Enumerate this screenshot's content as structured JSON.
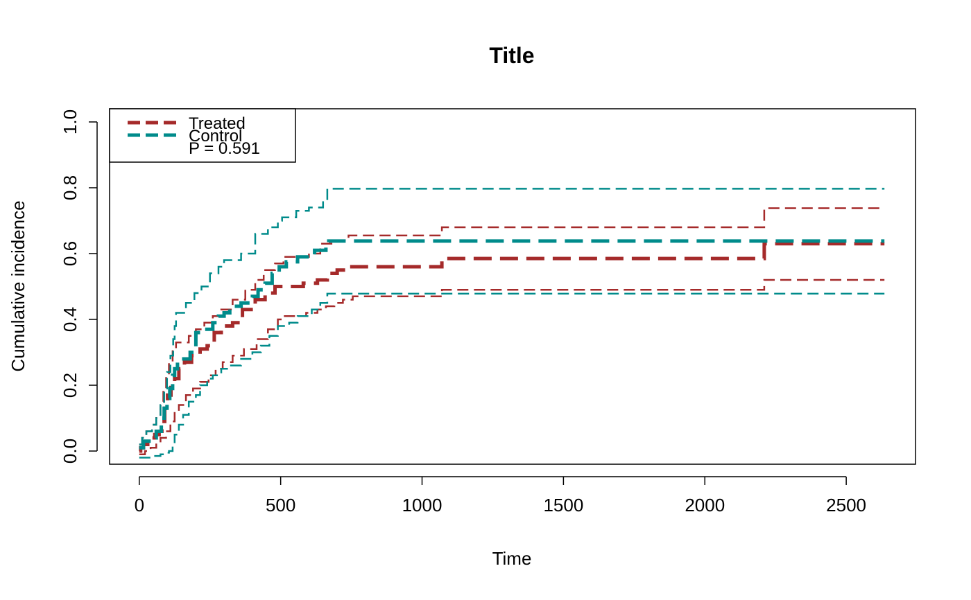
{
  "chart_data": {
    "type": "line",
    "title": "Title",
    "xlabel": "Time",
    "ylabel": "Cumulative incidence",
    "xlim": [
      -105,
      2745
    ],
    "ylim": [
      -0.04,
      1.04
    ],
    "x_ticks": [
      0,
      500,
      1000,
      1500,
      2000,
      2500
    ],
    "x_tick_labels": [
      "0",
      "500",
      "1000",
      "1500",
      "2000",
      "2500"
    ],
    "y_ticks": [
      0.0,
      0.2,
      0.4,
      0.6,
      0.8,
      1.0
    ],
    "y_tick_labels": [
      "0.0",
      "0.2",
      "0.4",
      "0.6",
      "0.8",
      "1.0"
    ],
    "grid": false,
    "legend": {
      "position": "top-left",
      "entries": [
        "Treated",
        "Control"
      ],
      "annotation": "P = 0.591"
    },
    "colors": {
      "treated": "#a52a2a",
      "control": "#008b8b"
    },
    "series": [
      {
        "name": "Treated",
        "role": "estimate",
        "color": "#a52a2a",
        "points": [
          [
            0,
            0
          ],
          [
            5,
            0.01
          ],
          [
            15,
            0.02
          ],
          [
            30,
            0.03
          ],
          [
            45,
            0.04
          ],
          [
            55,
            0.05
          ],
          [
            70,
            0.06
          ],
          [
            80,
            0.09
          ],
          [
            90,
            0.13
          ],
          [
            100,
            0.17
          ],
          [
            112,
            0.2
          ],
          [
            125,
            0.22
          ],
          [
            140,
            0.25
          ],
          [
            160,
            0.27
          ],
          [
            185,
            0.29
          ],
          [
            215,
            0.31
          ],
          [
            240,
            0.32
          ],
          [
            265,
            0.36
          ],
          [
            290,
            0.38
          ],
          [
            330,
            0.39
          ],
          [
            365,
            0.43
          ],
          [
            410,
            0.46
          ],
          [
            445,
            0.48
          ],
          [
            480,
            0.5
          ],
          [
            540,
            0.5
          ],
          [
            580,
            0.51
          ],
          [
            630,
            0.52
          ],
          [
            665,
            0.54
          ],
          [
            700,
            0.55
          ],
          [
            735,
            0.56
          ],
          [
            1070,
            0.585
          ],
          [
            2200,
            0.585
          ],
          [
            2210,
            0.63
          ],
          [
            2635,
            0.63
          ]
        ]
      },
      {
        "name": "Treated",
        "role": "upper",
        "color": "#a52a2a",
        "points": [
          [
            0,
            0.02
          ],
          [
            10,
            0.04
          ],
          [
            25,
            0.06
          ],
          [
            45,
            0.08
          ],
          [
            60,
            0.11
          ],
          [
            75,
            0.15
          ],
          [
            85,
            0.19
          ],
          [
            95,
            0.23
          ],
          [
            105,
            0.27
          ],
          [
            118,
            0.31
          ],
          [
            130,
            0.33
          ],
          [
            175,
            0.35
          ],
          [
            200,
            0.37
          ],
          [
            230,
            0.39
          ],
          [
            260,
            0.41
          ],
          [
            290,
            0.43
          ],
          [
            330,
            0.46
          ],
          [
            375,
            0.49
          ],
          [
            410,
            0.52
          ],
          [
            440,
            0.55
          ],
          [
            480,
            0.57
          ],
          [
            510,
            0.59
          ],
          [
            600,
            0.6
          ],
          [
            640,
            0.63
          ],
          [
            690,
            0.64
          ],
          [
            740,
            0.655
          ],
          [
            1070,
            0.68
          ],
          [
            2200,
            0.68
          ],
          [
            2210,
            0.738
          ],
          [
            2635,
            0.738
          ]
        ]
      },
      {
        "name": "Treated",
        "role": "lower",
        "color": "#a52a2a",
        "points": [
          [
            0,
            -0.01
          ],
          [
            20,
            0.0
          ],
          [
            40,
            0.01
          ],
          [
            60,
            0.02
          ],
          [
            75,
            0.04
          ],
          [
            95,
            0.06
          ],
          [
            110,
            0.09
          ],
          [
            125,
            0.12
          ],
          [
            140,
            0.14
          ],
          [
            165,
            0.17
          ],
          [
            190,
            0.19
          ],
          [
            215,
            0.21
          ],
          [
            245,
            0.23
          ],
          [
            270,
            0.25
          ],
          [
            295,
            0.27
          ],
          [
            330,
            0.29
          ],
          [
            370,
            0.31
          ],
          [
            415,
            0.34
          ],
          [
            455,
            0.37
          ],
          [
            490,
            0.4
          ],
          [
            510,
            0.41
          ],
          [
            590,
            0.42
          ],
          [
            630,
            0.43
          ],
          [
            660,
            0.44
          ],
          [
            690,
            0.45
          ],
          [
            720,
            0.46
          ],
          [
            755,
            0.47
          ],
          [
            1070,
            0.49
          ],
          [
            2200,
            0.49
          ],
          [
            2210,
            0.52
          ],
          [
            2635,
            0.52
          ]
        ]
      },
      {
        "name": "Control",
        "role": "estimate",
        "color": "#008b8b",
        "points": [
          [
            0,
            0.01
          ],
          [
            15,
            0.03
          ],
          [
            45,
            0.04
          ],
          [
            60,
            0.06
          ],
          [
            78,
            0.1
          ],
          [
            88,
            0.13
          ],
          [
            98,
            0.16
          ],
          [
            108,
            0.19
          ],
          [
            118,
            0.23
          ],
          [
            125,
            0.25
          ],
          [
            135,
            0.28
          ],
          [
            180,
            0.3
          ],
          [
            200,
            0.36
          ],
          [
            230,
            0.37
          ],
          [
            260,
            0.39
          ],
          [
            280,
            0.41
          ],
          [
            300,
            0.42
          ],
          [
            320,
            0.44
          ],
          [
            360,
            0.45
          ],
          [
            400,
            0.47
          ],
          [
            420,
            0.49
          ],
          [
            445,
            0.51
          ],
          [
            470,
            0.54
          ],
          [
            495,
            0.56
          ],
          [
            520,
            0.575
          ],
          [
            560,
            0.59
          ],
          [
            620,
            0.61
          ],
          [
            660,
            0.63
          ],
          [
            670,
            0.638
          ],
          [
            2635,
            0.638
          ]
        ]
      },
      {
        "name": "Control",
        "role": "upper",
        "color": "#008b8b",
        "points": [
          [
            0,
            0.02
          ],
          [
            10,
            0.04
          ],
          [
            25,
            0.06
          ],
          [
            45,
            0.08
          ],
          [
            60,
            0.1
          ],
          [
            75,
            0.14
          ],
          [
            88,
            0.19
          ],
          [
            98,
            0.24
          ],
          [
            110,
            0.29
          ],
          [
            120,
            0.34
          ],
          [
            125,
            0.38
          ],
          [
            130,
            0.42
          ],
          [
            165,
            0.45
          ],
          [
            195,
            0.48
          ],
          [
            220,
            0.5
          ],
          [
            250,
            0.54
          ],
          [
            280,
            0.56
          ],
          [
            300,
            0.58
          ],
          [
            360,
            0.6
          ],
          [
            410,
            0.66
          ],
          [
            455,
            0.68
          ],
          [
            490,
            0.7
          ],
          [
            505,
            0.71
          ],
          [
            555,
            0.73
          ],
          [
            600,
            0.74
          ],
          [
            650,
            0.76
          ],
          [
            665,
            0.797
          ],
          [
            2635,
            0.797
          ]
        ]
      },
      {
        "name": "Control",
        "role": "lower",
        "color": "#008b8b",
        "points": [
          [
            0,
            -0.02
          ],
          [
            45,
            -0.015
          ],
          [
            75,
            -0.01
          ],
          [
            95,
            -0.005
          ],
          [
            105,
            0.0
          ],
          [
            118,
            0.02
          ],
          [
            125,
            0.05
          ],
          [
            140,
            0.08
          ],
          [
            155,
            0.11
          ],
          [
            175,
            0.15
          ],
          [
            200,
            0.17
          ],
          [
            215,
            0.2
          ],
          [
            240,
            0.22
          ],
          [
            260,
            0.23
          ],
          [
            290,
            0.25
          ],
          [
            320,
            0.26
          ],
          [
            360,
            0.28
          ],
          [
            400,
            0.3
          ],
          [
            430,
            0.32
          ],
          [
            460,
            0.35
          ],
          [
            490,
            0.38
          ],
          [
            530,
            0.39
          ],
          [
            560,
            0.41
          ],
          [
            610,
            0.43
          ],
          [
            640,
            0.45
          ],
          [
            665,
            0.478
          ],
          [
            2635,
            0.478
          ]
        ]
      }
    ]
  }
}
